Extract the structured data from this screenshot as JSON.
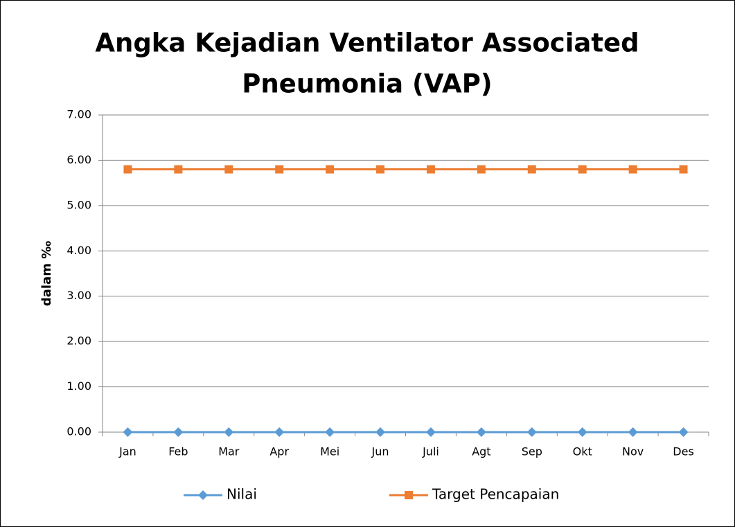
{
  "chart_data": {
    "type": "line",
    "title": [
      "Angka Kejadian Ventilator Associated",
      "Pneumonia (VAP)"
    ],
    "y_label": "dalam ‰",
    "categories": [
      "Jan",
      "Feb",
      "Mar",
      "Apr",
      "Mei",
      "Jun",
      "Juli",
      "Agt",
      "Sep",
      "Okt",
      "Nov",
      "Des"
    ],
    "series": [
      {
        "name": "Nilai",
        "color": "#5b9bd5",
        "marker": "diamond",
        "values": [
          0,
          0,
          0,
          0,
          0,
          0,
          0,
          0,
          0,
          0,
          0,
          0
        ]
      },
      {
        "name": "Target Pencapaian",
        "color": "#ed7d31",
        "marker": "square",
        "values": [
          5.8,
          5.8,
          5.8,
          5.8,
          5.8,
          5.8,
          5.8,
          5.8,
          5.8,
          5.8,
          5.8,
          5.8
        ]
      }
    ],
    "ylim": [
      0,
      7
    ],
    "yticks": [
      {
        "value": 0,
        "label": "0.00"
      },
      {
        "value": 1,
        "label": "1.00"
      },
      {
        "value": 2,
        "label": "2.00"
      },
      {
        "value": 3,
        "label": "3.00"
      },
      {
        "value": 4,
        "label": "4.00"
      },
      {
        "value": 5,
        "label": "5.00"
      },
      {
        "value": 6,
        "label": "6.00"
      },
      {
        "value": 7,
        "label": "7.00"
      }
    ],
    "grid": true,
    "legend": "bottom"
  }
}
